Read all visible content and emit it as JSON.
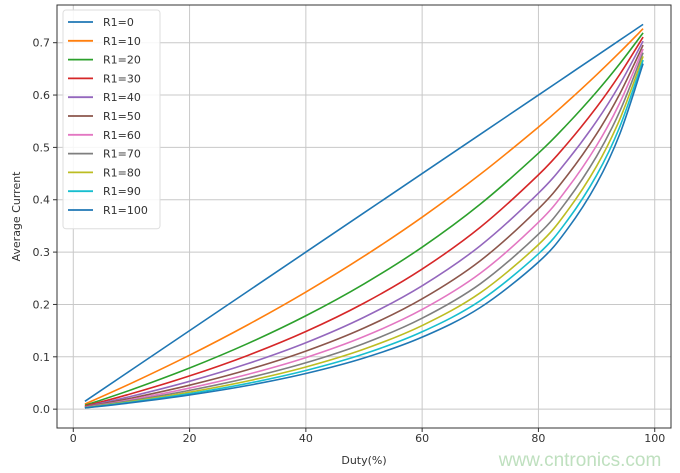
{
  "watermark": "www.cntronics.com",
  "chart_data": {
    "type": "line",
    "title": "",
    "xlabel": "Duty(%)",
    "ylabel": "Average Current",
    "xlim": [
      -2.8,
      102.8
    ],
    "ylim": [
      -0.036,
      0.772
    ],
    "xticks": [
      0,
      20,
      40,
      60,
      80,
      100
    ],
    "yticks": [
      0.0,
      0.1,
      0.2,
      0.3,
      0.4,
      0.5,
      0.6,
      0.7
    ],
    "xtick_labels": [
      "0",
      "20",
      "40",
      "60",
      "80",
      "100"
    ],
    "ytick_labels": [
      "0.0",
      "0.1",
      "0.2",
      "0.3",
      "0.4",
      "0.5",
      "0.6",
      "0.7"
    ],
    "grid": true,
    "legend_position": "top-left",
    "x": [
      2,
      10,
      20,
      30,
      40,
      50,
      60,
      70,
      80,
      85,
      90,
      94,
      98
    ],
    "series": [
      {
        "name": "R1=0",
        "color": "#1f77b4",
        "values": [
          0.015,
          0.075,
          0.15,
          0.225,
          0.3,
          0.375,
          0.45,
          0.525,
          0.6,
          0.6375,
          0.675,
          0.705,
          0.735
        ]
      },
      {
        "name": "R1=10",
        "color": "#ff7f0e",
        "values": [
          0.0096,
          0.0496,
          0.1031,
          0.161,
          0.2237,
          0.2921,
          0.3667,
          0.4486,
          0.5388,
          0.5874,
          0.6387,
          0.6818,
          0.7267
        ]
      },
      {
        "name": "R1=20",
        "color": "#2ca02c",
        "values": [
          0.0071,
          0.0371,
          0.0786,
          0.1253,
          0.1784,
          0.2392,
          0.3094,
          0.3916,
          0.4889,
          0.5447,
          0.6061,
          0.66,
          0.7187
        ]
      },
      {
        "name": "R1=30",
        "color": "#d62728",
        "values": [
          0.0056,
          0.0296,
          0.0635,
          0.1026,
          0.1483,
          0.2025,
          0.2676,
          0.3474,
          0.4475,
          0.5077,
          0.5767,
          0.6396,
          0.7108
        ]
      },
      {
        "name": "R1=40",
        "color": "#9467bd",
        "values": [
          0.0046,
          0.0246,
          0.0532,
          0.0869,
          0.1269,
          0.1756,
          0.2357,
          0.3122,
          0.4125,
          0.4755,
          0.55,
          0.6204,
          0.7031
        ]
      },
      {
        "name": "R1=50",
        "color": "#8c564b",
        "values": [
          0.004,
          0.0211,
          0.0458,
          0.0753,
          0.1109,
          0.155,
          0.2107,
          0.2835,
          0.3827,
          0.4471,
          0.5257,
          0.6024,
          0.6955
        ]
      },
      {
        "name": "R1=60",
        "color": "#e377c2",
        "values": [
          0.0035,
          0.0184,
          0.0403,
          0.0665,
          0.0985,
          0.1387,
          0.1904,
          0.2596,
          0.3568,
          0.4219,
          0.5034,
          0.5853,
          0.6881
        ]
      },
      {
        "name": "R1=70",
        "color": "#7f7f7f",
        "values": [
          0.0031,
          0.0164,
          0.0359,
          0.0595,
          0.0886,
          0.1255,
          0.1737,
          0.2394,
          0.3342,
          0.3993,
          0.483,
          0.5692,
          0.6809
        ]
      },
      {
        "name": "R1=80",
        "color": "#bcbd22",
        "values": [
          0.0028,
          0.0147,
          0.0324,
          0.0538,
          0.0805,
          0.1146,
          0.1597,
          0.2222,
          0.3143,
          0.3791,
          0.4641,
          0.554,
          0.6738
        ]
      },
      {
        "name": "R1=90",
        "color": "#17becf",
        "values": [
          0.0025,
          0.0134,
          0.0295,
          0.0491,
          0.0738,
          0.1055,
          0.1478,
          0.2072,
          0.2967,
          0.3608,
          0.4467,
          0.5395,
          0.6668
        ]
      },
      {
        "name": "R1=100",
        "color": "#1f77b4",
        "values": [
          0.0023,
          0.0123,
          0.0271,
          0.0452,
          0.0681,
          0.0977,
          0.1375,
          0.1942,
          0.2809,
          0.3442,
          0.4305,
          0.5258,
          0.66
        ]
      }
    ]
  }
}
